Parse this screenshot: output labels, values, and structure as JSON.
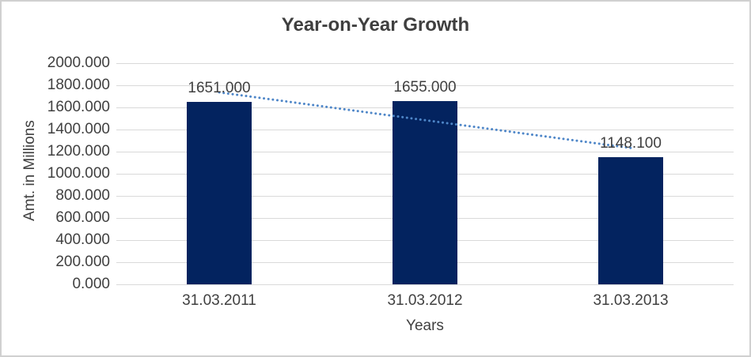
{
  "window": {
    "background": "#ffffff",
    "border_color": "#d0d0d0"
  },
  "chart_data": {
    "type": "bar",
    "title": "Year-on-Year Growth",
    "categories": [
      "31.03.2011",
      "31.03.2012",
      "31.03.2013"
    ],
    "values": [
      1651.0,
      1655.0,
      1148.1
    ],
    "data_labels": [
      "1651.000",
      "1655.000",
      "1148.100"
    ],
    "xlabel": "Years",
    "ylabel": "Amt. in Millions",
    "ylim": [
      0,
      2000
    ],
    "y_tick_interval": 200,
    "y_tick_labels": [
      "0.000",
      "200.000",
      "400.000",
      "600.000",
      "800.000",
      "1000.000",
      "1200.000",
      "1400.000",
      "1600.000",
      "1800.000",
      "2000.000"
    ],
    "grid": true,
    "legend": "none",
    "bar_color": "#03235f",
    "gridline_color": "#d9d9d9",
    "axis_text_color": "#404040",
    "title_color": "#3f3f3f",
    "trendline": {
      "type": "linear",
      "style": "dotted",
      "color": "#4e86c8"
    }
  }
}
